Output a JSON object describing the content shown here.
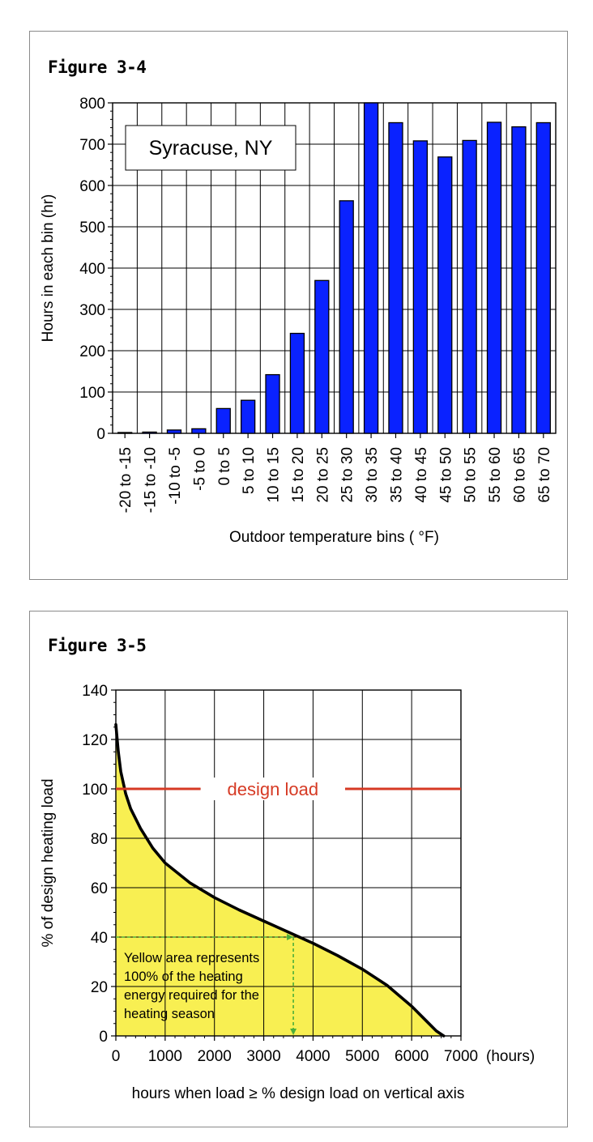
{
  "chart_data": [
    {
      "type": "bar",
      "figure_label": "Figure 3-4",
      "annotation": "Syracuse, NY",
      "ylabel": "Hours in each bin (hr)",
      "xlabel": "Outdoor temperature bins ( °F)",
      "ylim": [
        0,
        800
      ],
      "yticks": [
        0,
        100,
        200,
        300,
        400,
        500,
        600,
        700,
        800
      ],
      "grid": true,
      "bar_color": "#0a22ff",
      "categories": [
        "-20 to -15",
        "-15 to -10",
        "-10 to -5",
        "-5 to 0",
        "0 to 5",
        "5 to 10",
        "10 to 15",
        "15 to 20",
        "20 to 25",
        "25 to 30",
        "30 to 35",
        "35 to 40",
        "40 to 45",
        "45 to 50",
        "50 to 55",
        "55 to 60",
        "60 to 65",
        "65 to 70"
      ],
      "values": [
        2,
        3,
        8,
        11,
        60,
        80,
        142,
        242,
        370,
        563,
        800,
        752,
        708,
        669,
        709,
        753,
        742,
        752
      ]
    },
    {
      "type": "area",
      "figure_label": "Figure 3-5",
      "ylabel": "% of design heating load",
      "xlabel": "hours when load ≥ % design load on vertical axis",
      "x_unit": "(hours)",
      "xlim": [
        0,
        7000
      ],
      "ylim": [
        0,
        140
      ],
      "xticks": [
        0,
        1000,
        2000,
        3000,
        4000,
        5000,
        6000,
        7000
      ],
      "yticks": [
        0,
        20,
        40,
        60,
        80,
        100,
        120,
        140
      ],
      "grid": true,
      "fill_color": "#f8ef52",
      "curve_color": "#000000",
      "design_line": {
        "y": 100,
        "label": "design load",
        "color": "#d63a24"
      },
      "marker": {
        "x": 3600,
        "y": 40,
        "color": "#4caf3a"
      },
      "annotation_lines": [
        "Yellow area represents",
        "100% of the heating",
        "energy required for the",
        "heating season"
      ],
      "x": [
        0,
        50,
        100,
        200,
        300,
        500,
        750,
        1000,
        1500,
        2000,
        2500,
        3000,
        3500,
        4000,
        4500,
        5000,
        5500,
        6000,
        6300,
        6500,
        6650
      ],
      "y": [
        126,
        115,
        107,
        98,
        92,
        84,
        76,
        70,
        62,
        56,
        51,
        46.5,
        42,
        37.5,
        32.5,
        27,
        20.5,
        12,
        6,
        2,
        0
      ]
    }
  ]
}
